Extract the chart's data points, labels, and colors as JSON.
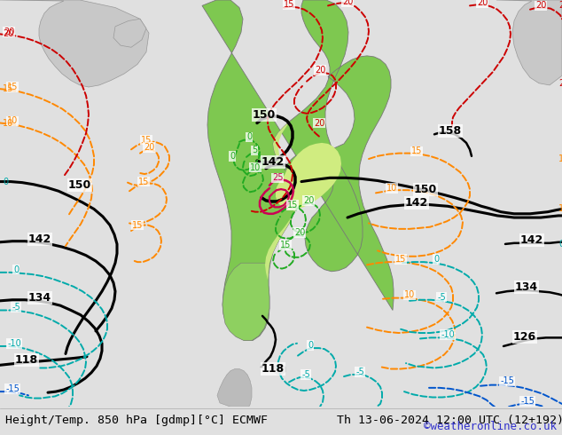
{
  "title_left": "Height/Temp. 850 hPa [gdmp][°C] ECMWF",
  "title_right": "Th 13-06-2024 12:00 UTC (12+192)",
  "credit": "©weatheronline.co.uk",
  "bg_color": "#e0e0e0",
  "ocean_color": "#d0d0d0",
  "land_color": "#c8c8c8",
  "sa_green": "#88cc44",
  "sa_green2": "#aad460",
  "figwidth": 6.34,
  "figheight": 4.9,
  "dpi": 100,
  "title_fontsize": 9.5,
  "credit_fontsize": 9
}
